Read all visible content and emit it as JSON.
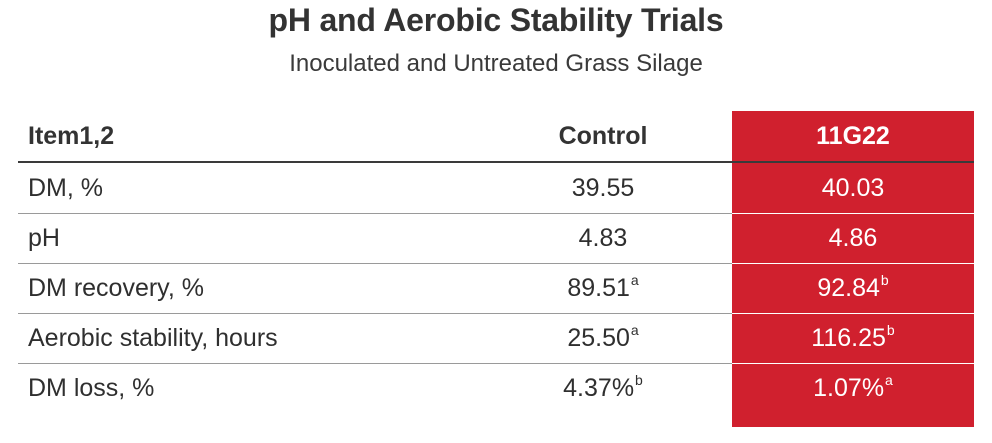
{
  "chart_data": {
    "type": "table",
    "title": "pH and Aerobic Stability Trials",
    "subtitle": "Inoculated and Untreated Grass Silage",
    "columns": [
      "Item1,2",
      "Control",
      "11G22"
    ],
    "rows": [
      {
        "item": "DM, %",
        "control": "39.55",
        "control_sup": "",
        "inoc": "40.03",
        "inoc_sup": ""
      },
      {
        "item": "pH",
        "control": "4.83",
        "control_sup": "",
        "inoc": "4.86",
        "inoc_sup": ""
      },
      {
        "item": "DM recovery, %",
        "control": "89.51",
        "control_sup": "a",
        "inoc": "92.84",
        "inoc_sup": "b"
      },
      {
        "item": "Aerobic stability, hours",
        "control": "25.50",
        "control_sup": "a",
        "inoc": "116.25",
        "inoc_sup": "b"
      },
      {
        "item": "DM loss, %",
        "control": "4.37%",
        "control_sup": "b",
        "inoc": "1.07%",
        "inoc_sup": "a"
      }
    ],
    "highlight_color": "#d0202e"
  }
}
